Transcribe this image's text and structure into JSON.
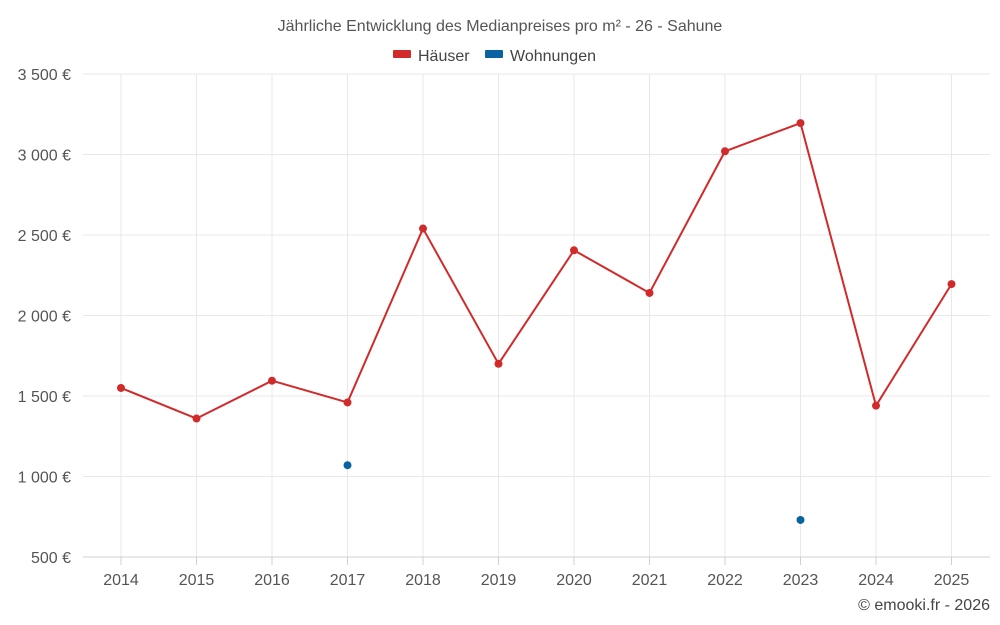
{
  "chart_data": {
    "type": "line",
    "title": "Jährliche Entwicklung des Medianpreises pro m² - 26 - Sahune",
    "xlabel": "",
    "ylabel": "",
    "categories": [
      "2014",
      "2015",
      "2016",
      "2017",
      "2018",
      "2019",
      "2020",
      "2021",
      "2022",
      "2023",
      "2024",
      "2025"
    ],
    "ylim": [
      500,
      3500
    ],
    "yticks": [
      500,
      1000,
      1500,
      2000,
      2500,
      3000,
      3500
    ],
    "ytick_labels": [
      "500 €",
      "1 000 €",
      "1 500 €",
      "2 000 €",
      "2 500 €",
      "3 000 €",
      "3 500 €"
    ],
    "grid": true,
    "legend_position": "top-center",
    "series": [
      {
        "name": "Häuser",
        "color": "#d12a2a",
        "values": [
          1550,
          1360,
          1595,
          1460,
          2540,
          1700,
          2405,
          2140,
          3020,
          3195,
          1440,
          2195
        ]
      },
      {
        "name": "Wohnungen",
        "color": "#0a63a0",
        "values": [
          null,
          null,
          null,
          1070,
          null,
          null,
          null,
          null,
          null,
          730,
          null,
          null
        ]
      }
    ]
  },
  "credit": "© emooki.fr - 2026",
  "colors": {
    "grid": "#e8e8e8",
    "axis": "#d0d0d0",
    "text": "#555555"
  }
}
